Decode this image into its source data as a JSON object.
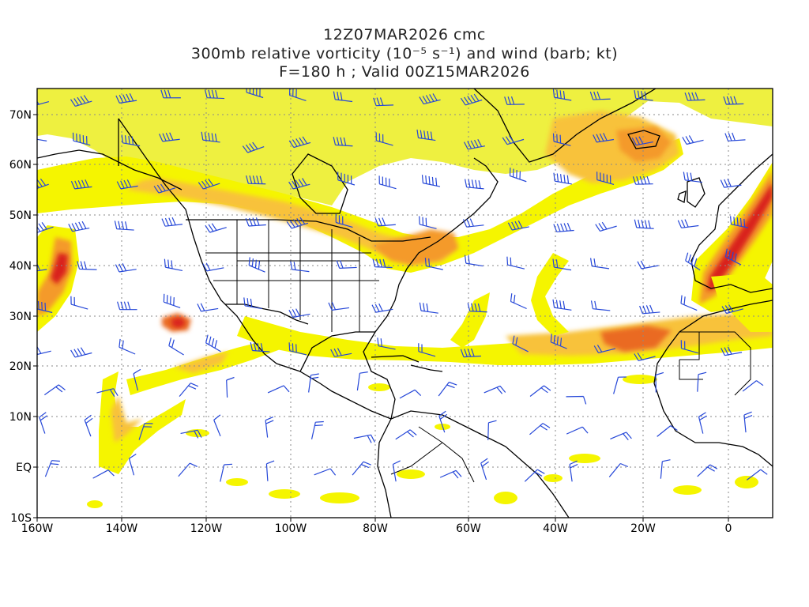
{
  "title": {
    "line1": "12Z07MAR2026 cmc",
    "line2": "300mb relative vorticity (10⁻⁵ s⁻¹) and wind (barb; kt)",
    "line3": "F=180 h ; Valid 00Z15MAR2026"
  },
  "axes": {
    "lon_labels": [
      "160W",
      "140W",
      "120W",
      "100W",
      "80W",
      "60W",
      "40W",
      "20W",
      "0"
    ],
    "lat_labels": [
      "70N",
      "60N",
      "50N",
      "40N",
      "30N",
      "20N",
      "10N",
      "EQ",
      "10S"
    ]
  },
  "colors": {
    "shade_yellow": "#f5f500",
    "shade_light_yellow": "#eef040",
    "shade_orange_light": "#f8c23a",
    "shade_orange": "#f49a2b",
    "shade_dark_orange": "#ea6a22",
    "shade_red": "#d9241c",
    "wind_barb": "#2547d8",
    "coastline": "#000000",
    "grid": "#8a8a8a"
  },
  "legend_note": "wind barbs in knots"
}
